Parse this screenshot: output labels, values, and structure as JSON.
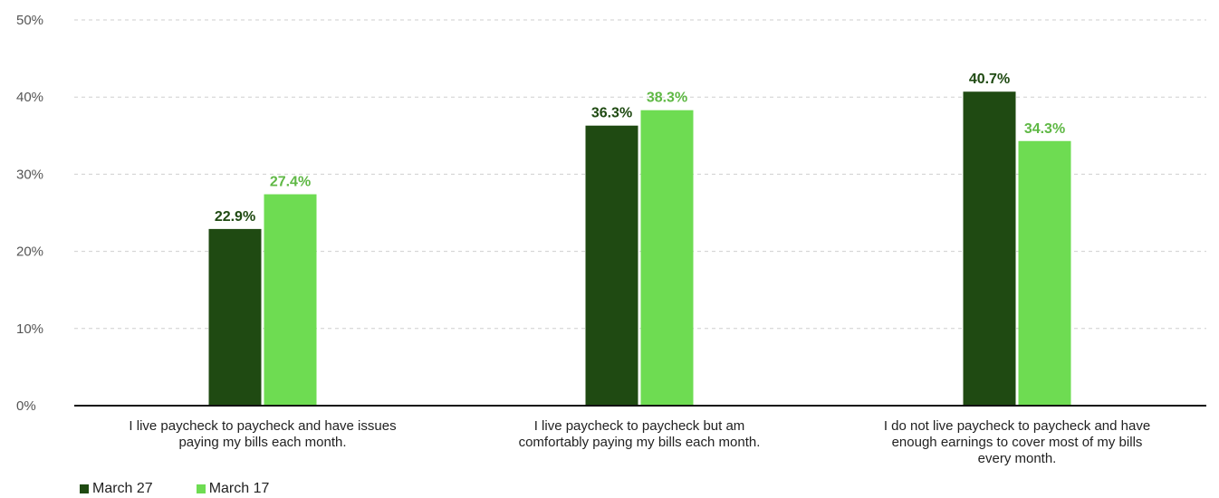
{
  "chart_data": {
    "type": "bar",
    "categories": [
      [
        "I live paycheck to paycheck and have issues",
        "paying my bills each month."
      ],
      [
        "I live paycheck to paycheck but am",
        "comfortably paying my bills each month."
      ],
      [
        "I do not live paycheck to paycheck and have",
        "enough earnings to cover most of my bills",
        "every month."
      ]
    ],
    "series": [
      {
        "name": "March 27",
        "color": "#1f4a12",
        "values": [
          22.9,
          36.3,
          40.7
        ],
        "labels": [
          "22.9%",
          "36.3%",
          "40.7%"
        ]
      },
      {
        "name": "March 17",
        "color": "#6edc52",
        "label_color": "#5fb845",
        "values": [
          27.4,
          38.3,
          34.3
        ],
        "labels": [
          "27.4%",
          "38.3%",
          "34.3%"
        ]
      }
    ],
    "ylim": [
      0,
      50
    ],
    "yticks": [
      0,
      10,
      20,
      30,
      40,
      50
    ],
    "ytick_labels": [
      "0%",
      "10%",
      "20%",
      "30%",
      "40%",
      "50%"
    ],
    "grid": true,
    "legend_position": "bottom-left"
  }
}
